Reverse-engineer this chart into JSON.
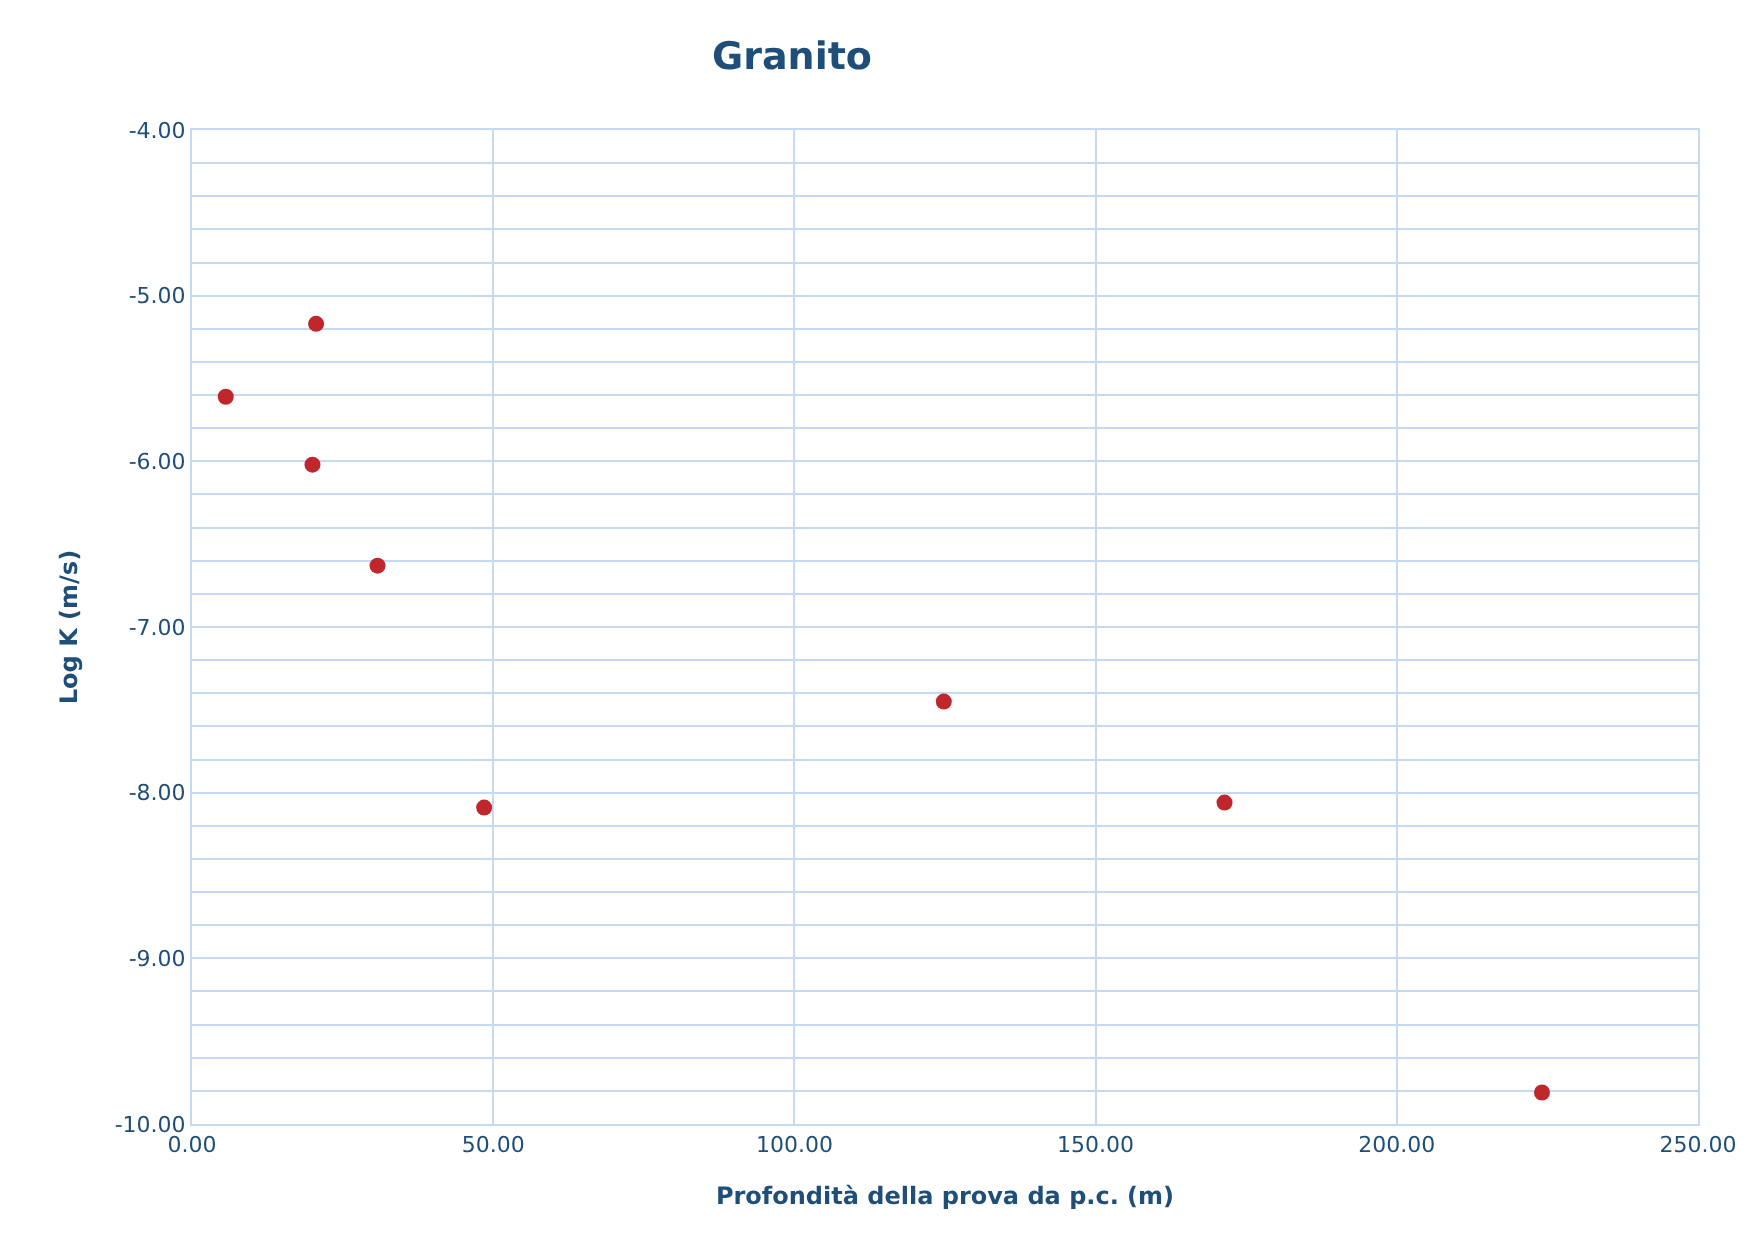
{
  "chart_data": {
    "type": "scatter",
    "title": "Granito",
    "xlabel": "Profondità della prova da p.c. (m)",
    "ylabel": "Log K (m/s)",
    "x": [
      5.6,
      20.6,
      20.0,
      30.8,
      48.5,
      124.8,
      171.4,
      224.1
    ],
    "series": [
      {
        "color": "#c0272d",
        "values": [
          -5.61,
          -5.17,
          -6.02,
          -6.63,
          -8.09,
          -7.45,
          -8.06,
          -9.81
        ]
      }
    ],
    "marker": "circle",
    "grid": true,
    "legend": false,
    "xlim": [
      0,
      250
    ],
    "xticks": [
      {
        "value": 0,
        "label": "0.00"
      },
      {
        "value": 50,
        "label": "50.00"
      },
      {
        "value": 100,
        "label": "100.00"
      },
      {
        "value": 150,
        "label": "150.00"
      },
      {
        "value": 200,
        "label": "200.00"
      },
      {
        "value": 250,
        "label": "250.00"
      }
    ],
    "ylim": [
      -10,
      -4
    ],
    "yticks": [
      {
        "value": -4,
        "label": "-4.00"
      },
      {
        "value": -4.2,
        "label": null
      },
      {
        "value": -4.4,
        "label": null
      },
      {
        "value": -4.6,
        "label": null
      },
      {
        "value": -4.8,
        "label": null
      },
      {
        "value": -5,
        "label": "-5.00"
      },
      {
        "value": -5.2,
        "label": null
      },
      {
        "value": -5.4,
        "label": null
      },
      {
        "value": -5.6,
        "label": null
      },
      {
        "value": -5.8,
        "label": null
      },
      {
        "value": -6,
        "label": "-6.00"
      },
      {
        "value": -6.2,
        "label": null
      },
      {
        "value": -6.4,
        "label": null
      },
      {
        "value": -6.6,
        "label": null
      },
      {
        "value": -6.8,
        "label": null
      },
      {
        "value": -7,
        "label": "-7.00"
      },
      {
        "value": -7.2,
        "label": null
      },
      {
        "value": -7.4,
        "label": null
      },
      {
        "value": -7.6,
        "label": null
      },
      {
        "value": -7.8,
        "label": null
      },
      {
        "value": -8,
        "label": "-8.00"
      },
      {
        "value": -8.2,
        "label": null
      },
      {
        "value": -8.4,
        "label": null
      },
      {
        "value": -8.6,
        "label": null
      },
      {
        "value": -8.8,
        "label": null
      },
      {
        "value": -9,
        "label": "-9.00"
      },
      {
        "value": -9.2,
        "label": null
      },
      {
        "value": -9.4,
        "label": null
      },
      {
        "value": -9.6,
        "label": null
      },
      {
        "value": -9.8,
        "label": null
      },
      {
        "value": -10,
        "label": "-10.00"
      }
    ]
  }
}
